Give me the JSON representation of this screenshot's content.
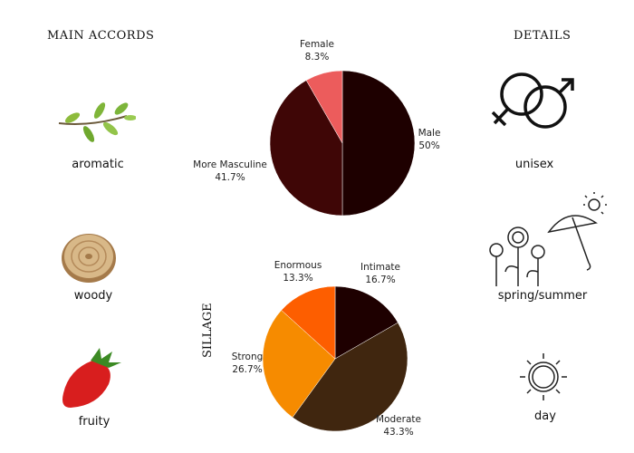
{
  "main_accords": {
    "title": "MAIN ACCORDS",
    "items": [
      {
        "label": "aromatic",
        "icon": "herb-leaves-icon"
      },
      {
        "label": "woody",
        "icon": "wood-slice-icon"
      },
      {
        "label": "fruity",
        "icon": "strawberry-icon"
      }
    ]
  },
  "details": {
    "title": "DETAILS",
    "items": [
      {
        "label": "unisex",
        "icon": "gender-symbols-icon"
      },
      {
        "label": "spring/summer",
        "icon": "flowers-umbrella-sun-icon"
      },
      {
        "label": "day",
        "icon": "sun-icon"
      }
    ]
  },
  "chart_data": [
    {
      "type": "pie",
      "title": "",
      "categories": [
        "Male",
        "More Masculine",
        "Female"
      ],
      "values": [
        50,
        41.7,
        8.3
      ],
      "labels": [
        "50%",
        "41.7%",
        "8.3%"
      ],
      "colors": [
        "#1e0000",
        "#3f0606",
        "#ec5c5c"
      ]
    },
    {
      "type": "pie",
      "title": "SILLAGE",
      "categories": [
        "Intimate",
        "Moderate",
        "Strong",
        "Enormous"
      ],
      "values": [
        16.7,
        43.3,
        26.7,
        13.3
      ],
      "labels": [
        "16.7%",
        "43.3%",
        "26.7%",
        "13.3%"
      ],
      "colors": [
        "#1e0000",
        "#40260f",
        "#f68b00",
        "#fd5e00"
      ]
    }
  ]
}
